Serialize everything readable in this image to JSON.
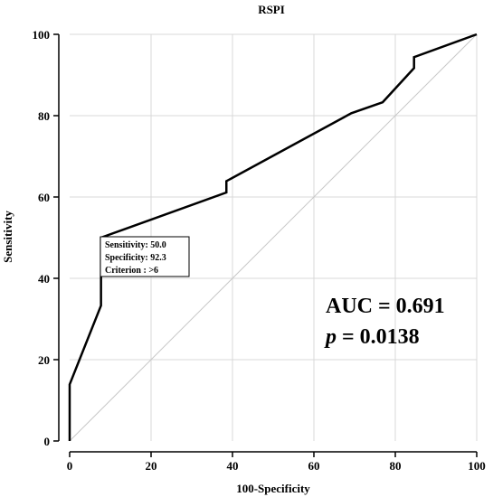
{
  "chart_data": {
    "type": "line",
    "title": "RSPI",
    "xlabel": "100-Specificity",
    "ylabel": "Sensitivity",
    "xlim": [
      0,
      100
    ],
    "ylim": [
      0,
      100
    ],
    "xticks": [
      0,
      20,
      40,
      60,
      80,
      100
    ],
    "yticks": [
      0,
      20,
      40,
      60,
      80,
      100
    ],
    "grid": true,
    "series": [
      {
        "x": [
          0,
          0,
          7.7,
          7.7,
          38.5,
          38.5,
          69.2,
          76.9,
          84.6,
          84.6,
          100
        ],
        "y": [
          0,
          13.9,
          33.3,
          50.0,
          61.1,
          63.9,
          80.6,
          83.3,
          91.7,
          94.4,
          100
        ]
      }
    ],
    "reference_line": {
      "x": [
        0,
        100
      ],
      "y": [
        0,
        100
      ]
    },
    "criterion_point": {
      "x": 7.7,
      "y": 50.0
    },
    "annotation": {
      "lines": [
        "Sensitivity: 50.0",
        "Specificity: 92.3",
        "Criterion : >6"
      ]
    },
    "stats": {
      "auc": "AUC = 0.691",
      "p_symbol": "p",
      "p_value": " = 0.0138"
    }
  }
}
